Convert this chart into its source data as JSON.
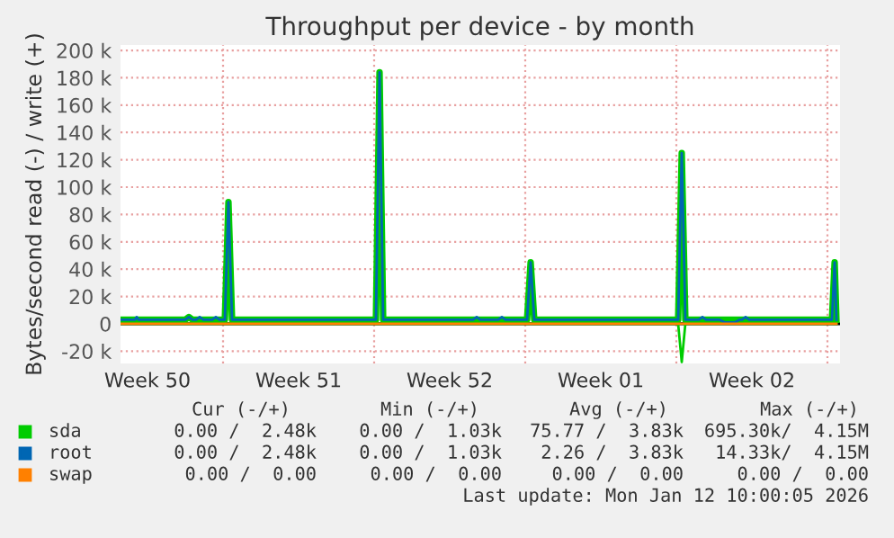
{
  "chart_data": {
    "type": "line",
    "title": "Throughput per device - by month",
    "ylabel": "Bytes/second read (-) / write (+)",
    "xlim": [
      "2025-12-10T06:00",
      "2026-01-12T14:00"
    ],
    "ylim": [
      -29000,
      204000
    ],
    "xticks": [
      {
        "value": "2025-12-11T12:00",
        "label": "Week 50"
      },
      {
        "value": "2025-12-15T00:00",
        "label": null
      },
      {
        "value": "2025-12-18T12:00",
        "label": "Week 51"
      },
      {
        "value": "2025-12-22T00:00",
        "label": null
      },
      {
        "value": "2025-12-25T12:00",
        "label": "Week 52"
      },
      {
        "value": "2025-12-29T00:00",
        "label": null
      },
      {
        "value": "2026-01-01T12:00",
        "label": "Week 01"
      },
      {
        "value": "2026-01-05T00:00",
        "label": null
      },
      {
        "value": "2026-01-08T12:00",
        "label": "Week 02"
      },
      {
        "value": "2026-01-12T00:00",
        "label": null
      }
    ],
    "yticks": [
      {
        "value": -20000,
        "label": "-20 k"
      },
      0,
      {
        "value": 20000,
        "label": "20 k"
      },
      {
        "value": 40000,
        "label": "40 k"
      },
      {
        "value": 60000,
        "label": "60 k"
      },
      {
        "value": 80000,
        "label": "80 k"
      },
      {
        "value": 100000,
        "label": "100 k"
      },
      {
        "value": 120000,
        "label": "120 k"
      },
      {
        "value": 140000,
        "label": "140 k"
      },
      {
        "value": 160000,
        "label": "160 k"
      },
      {
        "value": 180000,
        "label": "180 k"
      },
      {
        "value": 200000,
        "label": "200 k"
      }
    ],
    "grid": true,
    "legend": "bottom left",
    "ref_lines": [
      {
        "axis": "y",
        "value": 0,
        "color": "#000000"
      }
    ],
    "series": [
      {
        "name": "sda",
        "color": "#00cc00",
        "x": [
          "2025-12-10T06:00",
          "2025-12-13T06:00",
          "2025-12-13T10:00",
          "2025-12-13T14:00",
          "2025-12-15T02:00",
          "2025-12-15T06:00",
          "2025-12-15T10:00",
          "2025-12-22T02:00",
          "2025-12-22T06:00",
          "2025-12-22T10:00",
          "2025-12-29T02:00",
          "2025-12-29T06:00",
          "2025-12-29T10:00",
          "2026-01-05T02:00",
          "2026-01-05T06:00",
          "2026-01-05T10:00",
          "2026-01-12T05:00",
          "2026-01-12T08:00",
          "2026-01-12T10:00"
        ],
        "values": [
          3000,
          3000,
          5000,
          3000,
          3000,
          89000,
          3000,
          3000,
          184000,
          3000,
          3000,
          45000,
          3000,
          3000,
          125000,
          3000,
          3000,
          45000,
          3000
        ]
      },
      {
        "name": null,
        "color": "#00cc00",
        "x": [
          "2025-12-10T06:00",
          "2026-01-05T02:00",
          "2026-01-05T06:00",
          "2026-01-05T10:00",
          "2026-01-12T10:00"
        ],
        "values": [
          0,
          0,
          -28000,
          0,
          0
        ]
      },
      {
        "name": "root",
        "color": "#0066b3",
        "x": [
          "2025-12-10T06:00",
          "2025-12-10T22:00",
          "2025-12-11T00:00",
          "2025-12-11T02:00",
          "2025-12-13T06:00",
          "2025-12-13T10:00",
          "2025-12-13T14:00",
          "2025-12-13T18:00",
          "2025-12-13T22:00",
          "2025-12-14T02:00",
          "2025-12-14T12:00",
          "2025-12-14T16:00",
          "2025-12-14T20:00",
          "2025-12-15T02:00",
          "2025-12-15T06:00",
          "2025-12-15T10:00",
          "2025-12-22T02:00",
          "2025-12-22T06:00",
          "2025-12-22T10:00",
          "2025-12-26T14:00",
          "2025-12-26T18:00",
          "2025-12-26T22:00",
          "2025-12-27T18:00",
          "2025-12-27T22:00",
          "2025-12-28T02:00",
          "2025-12-29T02:00",
          "2025-12-29T06:00",
          "2025-12-29T10:00",
          "2026-01-05T02:00",
          "2026-01-05T06:00",
          "2026-01-05T10:00",
          "2026-01-06T01:00",
          "2026-01-06T05:00",
          "2026-01-06T09:00",
          "2026-01-07T00:00",
          "2026-01-07T06:00",
          "2026-01-07T17:00",
          "2026-01-07T22:00",
          "2026-01-08T01:00",
          "2026-01-08T05:00",
          "2026-01-08T09:00",
          "2026-01-12T05:00",
          "2026-01-12T08:00",
          "2026-01-12T10:00"
        ],
        "values": [
          3000,
          3000,
          5000,
          3000,
          3000,
          5000,
          3000,
          3000,
          5000,
          3000,
          3000,
          5000,
          3000,
          3000,
          89000,
          3000,
          3000,
          184000,
          3000,
          3000,
          5000,
          3000,
          3000,
          5000,
          3000,
          3000,
          45000,
          3000,
          3000,
          125000,
          3000,
          3000,
          5000,
          3000,
          3000,
          1000,
          1000,
          3000,
          3000,
          5000,
          3000,
          3000,
          45000,
          3000
        ]
      },
      {
        "name": "swap",
        "color": "#ff8000",
        "x": [
          "2025-12-10T06:00",
          "2026-01-12T10:00"
        ],
        "values": [
          0,
          0
        ]
      }
    ],
    "annotations": [
      "Cur (-/+)",
      "Min (-/+)",
      "Avg (-/+)",
      "Max (-/+)",
      "0.00 /  2.48k",
      "0.00 /  1.03k",
      "75.77 /  3.83k",
      "695.30k/  4.15M",
      "0.00 /  2.48k",
      "0.00 /  1.03k",
      "2.26 /  3.83k",
      "14.33k/  4.15M",
      "0.00 /  0.00",
      "0.00 /  0.00",
      "0.00 /  0.00",
      "0.00 /  0.00",
      "Last update: Mon Jan 12 10:00:05 2026"
    ]
  }
}
